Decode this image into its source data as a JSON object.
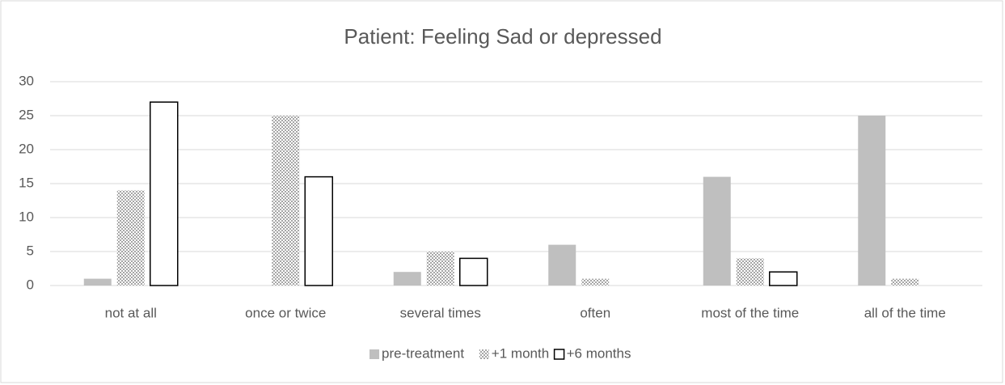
{
  "chart_data": {
    "type": "bar",
    "title": "Patient: Feeling Sad or depressed",
    "categories": [
      "not at all",
      "once or twice",
      "several times",
      "often",
      "most of the time",
      "all of the time"
    ],
    "series": [
      {
        "name": "pre-treatment",
        "color": "#bfbfbf",
        "fill": "solid",
        "values": [
          1,
          0,
          2,
          6,
          16,
          25
        ]
      },
      {
        "name": "+1 month",
        "color": "#a6a6a6",
        "fill": "dotted",
        "values": [
          14,
          25,
          5,
          1,
          4,
          1
        ]
      },
      {
        "name": "+6 months",
        "color": "#000000",
        "fill": "outline",
        "values": [
          27,
          16,
          4,
          0,
          2,
          0
        ]
      }
    ],
    "ylim": [
      0,
      30
    ],
    "yticks": [
      0,
      5,
      10,
      15,
      20,
      25,
      30
    ],
    "grid": true,
    "legend": "bottom"
  }
}
